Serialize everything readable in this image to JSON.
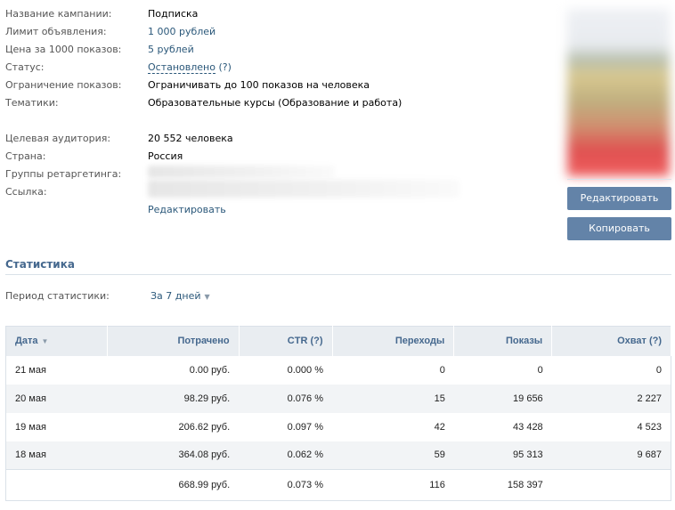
{
  "info": {
    "rows": [
      {
        "label": "Название кампании:",
        "value": "Подписка",
        "style": "plain"
      },
      {
        "label": "Лимит объявления:",
        "value": "1 000 рублей",
        "style": "link"
      },
      {
        "label": "Цена за 1000 показов:",
        "value": "5 рублей",
        "style": "link"
      },
      {
        "label": "Статус:",
        "value": "Остановлено",
        "extra": "(?)",
        "style": "status"
      },
      {
        "label": "Ограничение показов:",
        "value": "Ограничивать до 100 показов на человека",
        "style": "plain"
      },
      {
        "label": "Тематики:",
        "value": "Образовательные курсы (Образование и работа)",
        "style": "plain"
      }
    ],
    "rows2": [
      {
        "label": "Целевая аудитория:",
        "value": "20 552 человека"
      },
      {
        "label": "Страна:",
        "value": "Россия"
      },
      {
        "label": "Группы ретаргетинга:",
        "value": ""
      },
      {
        "label": "Ссылка:",
        "value": ""
      }
    ],
    "edit_link": "Редактировать"
  },
  "buttons": {
    "edit": "Редактировать",
    "copy": "Копировать"
  },
  "stats": {
    "title": "Статистика",
    "period_label": "Период статистики:",
    "period_value": "За 7 дней",
    "columns": [
      "Дата",
      "Потрачено",
      "CTR (?)",
      "Переходы",
      "Показы",
      "Охват (?)"
    ],
    "rows": [
      [
        "21 мая",
        "0.00 руб.",
        "0.000 %",
        "0",
        "0",
        "0"
      ],
      [
        "20 мая",
        "98.29 руб.",
        "0.076 %",
        "15",
        "19 656",
        "2 227"
      ],
      [
        "19 мая",
        "206.62 руб.",
        "0.097 %",
        "42",
        "43 428",
        "4 523"
      ],
      [
        "18 мая",
        "364.08 руб.",
        "0.062 %",
        "59",
        "95 313",
        "9 687"
      ]
    ],
    "total": [
      "",
      "668.99 руб.",
      "0.073 %",
      "116",
      "158 397",
      ""
    ]
  },
  "colors": {
    "link": "#2b587a",
    "button": "#6383a8",
    "header_bg": "#e9edf1",
    "section_title": "#45688e"
  }
}
